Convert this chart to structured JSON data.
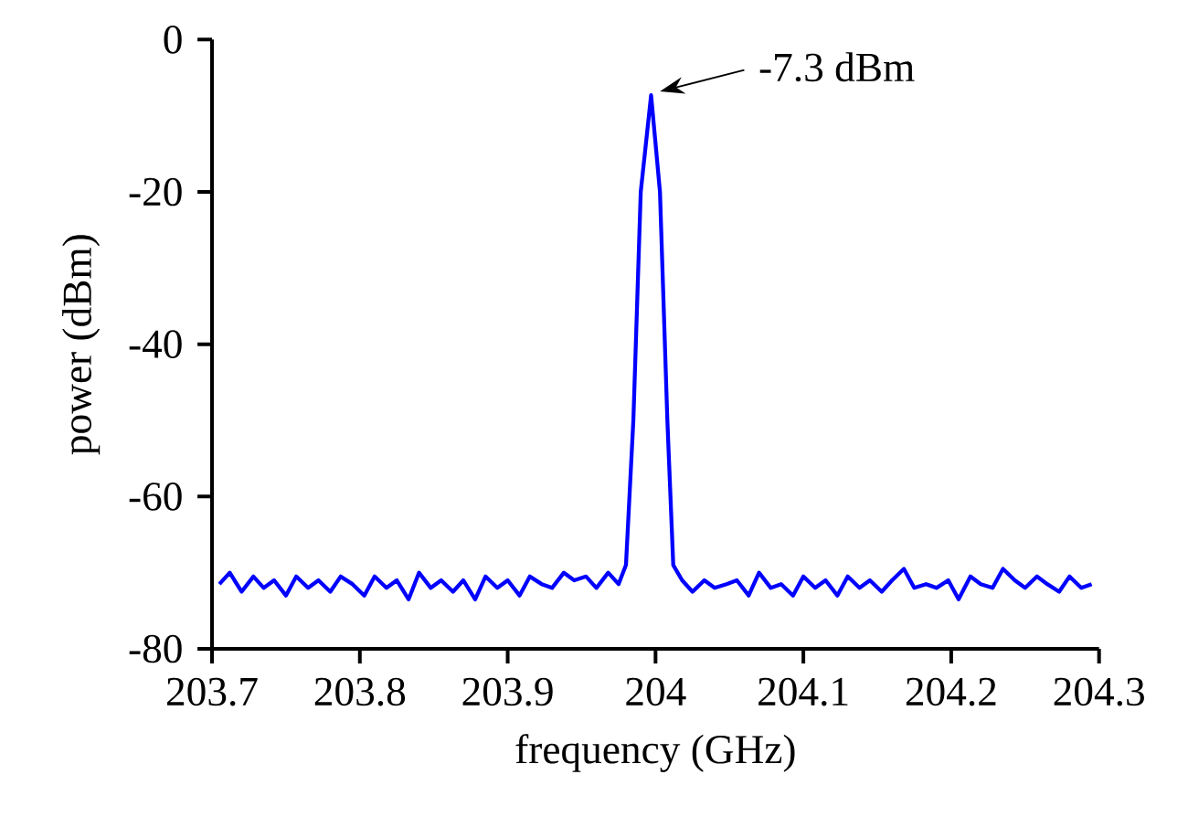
{
  "chart_data": {
    "type": "line",
    "xlabel": "frequency (GHz)",
    "ylabel": "power (dBm)",
    "xlim": [
      203.7,
      204.3
    ],
    "ylim": [
      -80,
      0
    ],
    "xticks": [
      203.7,
      203.8,
      203.9,
      204,
      204.1,
      204.2,
      204.3
    ],
    "yticks": [
      -80,
      -60,
      -40,
      -20,
      0
    ],
    "grid": false,
    "marker": "none",
    "line_style": "solid",
    "annotations": [
      "-7.3 dBm"
    ],
    "series": [
      {
        "color": "#0000ff",
        "x": [
          203.705,
          203.712,
          203.72,
          203.728,
          203.735,
          203.742,
          203.75,
          203.757,
          203.765,
          203.772,
          203.78,
          203.787,
          203.795,
          203.803,
          203.81,
          203.818,
          203.825,
          203.833,
          203.84,
          203.848,
          203.855,
          203.863,
          203.87,
          203.878,
          203.885,
          203.893,
          203.9,
          203.908,
          203.915,
          203.923,
          203.93,
          203.938,
          203.945,
          203.953,
          203.96,
          203.968,
          203.975,
          203.98,
          203.985,
          203.99,
          203.997,
          204.003,
          204.008,
          204.012,
          204.018,
          204.025,
          204.033,
          204.04,
          204.048,
          204.055,
          204.063,
          204.07,
          204.078,
          204.085,
          204.093,
          204.1,
          204.108,
          204.115,
          204.123,
          204.13,
          204.138,
          204.145,
          204.153,
          204.16,
          204.168,
          204.175,
          204.183,
          204.19,
          204.198,
          204.205,
          204.213,
          204.22,
          204.228,
          204.235,
          204.243,
          204.25,
          204.258,
          204.265,
          204.273,
          204.28,
          204.288,
          204.295
        ],
        "values": [
          -71.5,
          -70,
          -72.5,
          -70.5,
          -72,
          -71,
          -73,
          -70.5,
          -72,
          -71,
          -72.5,
          -70.5,
          -71.5,
          -73,
          -70.5,
          -72,
          -71,
          -73.5,
          -70,
          -72,
          -71,
          -72.5,
          -71,
          -73.5,
          -70.5,
          -72,
          -71,
          -73,
          -70.5,
          -71.5,
          -72,
          -70,
          -71,
          -70.5,
          -72,
          -70,
          -71.5,
          -69,
          -50,
          -20,
          -7.3,
          -20,
          -50,
          -69,
          -71,
          -72.5,
          -71,
          -72,
          -71.5,
          -71,
          -73,
          -70,
          -72,
          -71.5,
          -73,
          -70.5,
          -72,
          -71,
          -73,
          -70.5,
          -72,
          -71,
          -72.5,
          -71,
          -69.5,
          -72,
          -71.5,
          -72,
          -71,
          -73.5,
          -70.5,
          -71.5,
          -72,
          -69.5,
          -71,
          -72,
          -70.5,
          -71.5,
          -72.5,
          -70.5,
          -72,
          -71.5
        ]
      }
    ]
  }
}
